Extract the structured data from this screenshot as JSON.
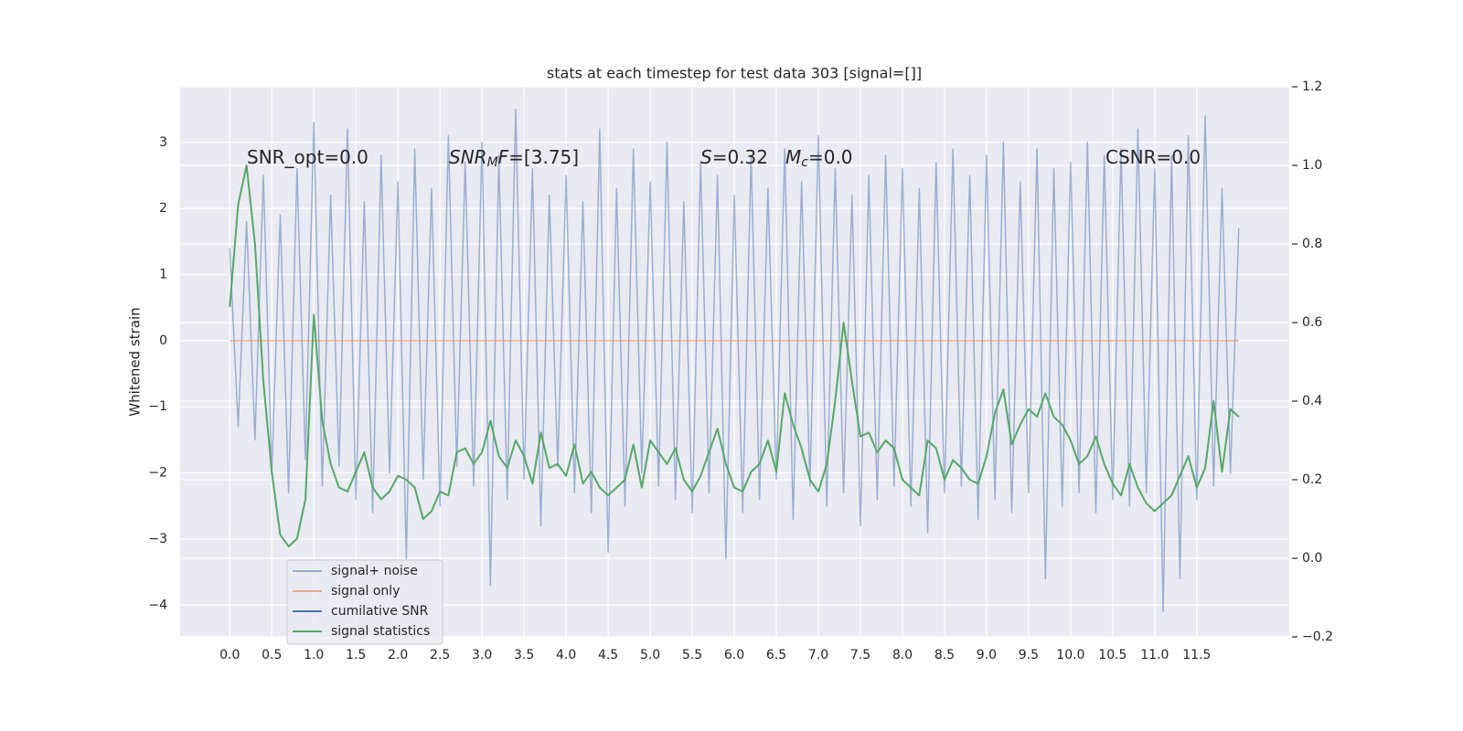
{
  "chart_data": {
    "type": "line",
    "title": "stats at each timestep for test data 303 [signal=[]]",
    "ylabel": "Whitened strain",
    "x": [
      0,
      0.1,
      0.2,
      0.3,
      0.4,
      0.5,
      0.6,
      0.7,
      0.8,
      0.9,
      1.0,
      1.1,
      1.2,
      1.3,
      1.4,
      1.5,
      1.6,
      1.7,
      1.8,
      1.9,
      2.0,
      2.1,
      2.2,
      2.3,
      2.4,
      2.5,
      2.6,
      2.7,
      2.8,
      2.9,
      3.0,
      3.1,
      3.2,
      3.3,
      3.4,
      3.5,
      3.6,
      3.7,
      3.8,
      3.9,
      4.0,
      4.1,
      4.2,
      4.3,
      4.4,
      4.5,
      4.6,
      4.7,
      4.8,
      4.9,
      5.0,
      5.1,
      5.2,
      5.3,
      5.4,
      5.5,
      5.6,
      5.7,
      5.8,
      5.9,
      6.0,
      6.1,
      6.2,
      6.3,
      6.4,
      6.5,
      6.6,
      6.7,
      6.8,
      6.9,
      7.0,
      7.1,
      7.2,
      7.3,
      7.4,
      7.5,
      7.6,
      7.7,
      7.8,
      7.9,
      8.0,
      8.1,
      8.2,
      8.3,
      8.4,
      8.5,
      8.6,
      8.7,
      8.8,
      8.9,
      9.0,
      9.1,
      9.2,
      9.3,
      9.4,
      9.5,
      9.6,
      9.7,
      9.8,
      9.9,
      10.0,
      10.1,
      10.2,
      10.3,
      10.4,
      10.5,
      10.6,
      10.7,
      10.8,
      10.9,
      11.0,
      11.1,
      11.2,
      11.3,
      11.4,
      11.5,
      11.6,
      11.7,
      11.8,
      11.9,
      12.0
    ],
    "series": [
      {
        "name": "signal+ noise",
        "color": "#4c72b0",
        "opacity": 0.5,
        "values": [
          1.4,
          -1.3,
          1.8,
          -1.5,
          2.5,
          -2.0,
          1.9,
          -2.3,
          2.6,
          -1.8,
          3.3,
          -2.2,
          2.2,
          -1.9,
          3.2,
          -2.4,
          2.1,
          -2.6,
          2.8,
          -2.0,
          2.4,
          -3.3,
          2.9,
          -2.1,
          2.3,
          -2.5,
          3.1,
          -1.9,
          2.7,
          -2.2,
          3.0,
          -3.7,
          2.8,
          -2.4,
          3.5,
          -2.1,
          2.6,
          -2.8,
          2.2,
          -1.9,
          2.5,
          -2.3,
          2.1,
          -2.6,
          3.2,
          -3.2,
          2.3,
          -2.5,
          2.9,
          -2.0,
          2.4,
          -2.2,
          3.0,
          -2.4,
          2.1,
          -2.6,
          2.7,
          -2.3,
          2.5,
          -3.3,
          2.2,
          -2.6,
          2.8,
          -2.4,
          2.3,
          -2.1,
          2.9,
          -2.7,
          2.4,
          -2.2,
          3.1,
          -2.5,
          2.6,
          -2.3,
          2.2,
          -2.8,
          2.5,
          -2.4,
          2.8,
          -2.2,
          2.6,
          -2.5,
          2.3,
          -2.9,
          2.7,
          -2.3,
          2.9,
          -2.2,
          2.5,
          -2.7,
          2.8,
          -2.4,
          3.0,
          -2.6,
          2.4,
          -2.3,
          2.9,
          -3.6,
          2.6,
          -2.5,
          2.7,
          -2.3,
          3.0,
          -2.6,
          2.8,
          -2.4,
          2.9,
          -2.5,
          3.2,
          -2.3,
          2.6,
          -4.1,
          2.8,
          -3.6,
          3.1,
          -2.4,
          3.4,
          -2.2,
          2.3,
          -2.0,
          1.7
        ]
      },
      {
        "name": "signal only",
        "color": "#dd8452",
        "opacity": 0.6,
        "x": [
          0,
          12.0
        ],
        "values": [
          0,
          0
        ]
      },
      {
        "name": "cumilative SNR",
        "color": "#4c72b0",
        "opacity": 1
      },
      {
        "name": "signal statistics",
        "color": "#55a868",
        "opacity": 1,
        "axis": "y2",
        "values": [
          0.64,
          0.9,
          1.0,
          0.8,
          0.45,
          0.22,
          0.06,
          0.03,
          0.05,
          0.15,
          0.62,
          0.35,
          0.24,
          0.18,
          0.17,
          0.22,
          0.27,
          0.18,
          0.15,
          0.17,
          0.21,
          0.2,
          0.18,
          0.1,
          0.12,
          0.17,
          0.16,
          0.27,
          0.28,
          0.24,
          0.27,
          0.35,
          0.26,
          0.23,
          0.3,
          0.26,
          0.19,
          0.32,
          0.23,
          0.24,
          0.21,
          0.29,
          0.19,
          0.22,
          0.18,
          0.16,
          0.18,
          0.2,
          0.29,
          0.18,
          0.3,
          0.27,
          0.24,
          0.28,
          0.2,
          0.17,
          0.21,
          0.27,
          0.33,
          0.24,
          0.18,
          0.17,
          0.22,
          0.24,
          0.3,
          0.22,
          0.42,
          0.34,
          0.28,
          0.2,
          0.17,
          0.24,
          0.4,
          0.6,
          0.45,
          0.31,
          0.32,
          0.27,
          0.3,
          0.28,
          0.2,
          0.18,
          0.16,
          0.3,
          0.28,
          0.2,
          0.25,
          0.23,
          0.2,
          0.19,
          0.26,
          0.37,
          0.43,
          0.29,
          0.34,
          0.38,
          0.36,
          0.42,
          0.36,
          0.34,
          0.3,
          0.24,
          0.26,
          0.31,
          0.24,
          0.19,
          0.16,
          0.24,
          0.18,
          0.14,
          0.12,
          0.14,
          0.16,
          0.21,
          0.26,
          0.18,
          0.23,
          0.4,
          0.22,
          0.38,
          0.36
        ]
      }
    ],
    "xlim": [
      -0.59,
      12.6
    ],
    "xticks": [
      {
        "value": 0,
        "label": "0.0"
      },
      0.5,
      {
        "value": 1,
        "label": "1.0"
      },
      1.5,
      {
        "value": 2,
        "label": "2.0"
      },
      2.5,
      {
        "value": 3,
        "label": "3.0"
      },
      3.5,
      {
        "value": 4,
        "label": "4.0"
      },
      4.5,
      {
        "value": 5,
        "label": "5.0"
      },
      5.5,
      {
        "value": 6,
        "label": "6.0"
      },
      6.5,
      {
        "value": 7,
        "label": "7.0"
      },
      7.5,
      {
        "value": 8,
        "label": "8.0"
      },
      8.5,
      {
        "value": 9,
        "label": "9.0"
      },
      9.5,
      {
        "value": 10,
        "label": "10.0"
      },
      10.5,
      {
        "value": 11,
        "label": "11.0"
      },
      11.5
    ],
    "ylim": [
      -4.48,
      3.84
    ],
    "yticks": [
      {
        "value": -4,
        "label": "−4"
      },
      {
        "value": -3,
        "label": "−3"
      },
      {
        "value": -2,
        "label": "−2"
      },
      {
        "value": -1,
        "label": "−1"
      },
      0,
      1,
      2,
      3
    ],
    "y2lim": [
      -0.2,
      1.2
    ],
    "y2ticks": [
      {
        "value": -0.2,
        "label": "−0.2"
      },
      {
        "value": 0,
        "label": "0.0"
      },
      0.2,
      0.4,
      0.6,
      0.8,
      {
        "value": 1,
        "label": "1.0"
      },
      1.2
    ],
    "grid": true,
    "legend": "lower left",
    "annotations": [
      [
        {
          "text": "SNR_opt=0.0"
        }
      ],
      [
        {
          "text": "SNR",
          "style": "italic"
        },
        {
          "text": "M",
          "style": "italic-sub"
        },
        {
          "text": "F",
          "style": "italic"
        },
        {
          "text": "=[3.75]"
        }
      ],
      [
        {
          "text": "S",
          "style": "italic"
        },
        {
          "text": "=0.32"
        }
      ],
      [
        {
          "text": "M",
          "style": "italic"
        },
        {
          "text": "c",
          "style": "italic-sub"
        },
        {
          "text": "=0.0"
        }
      ],
      [
        {
          "text": "CSNR=0.0"
        }
      ]
    ]
  }
}
